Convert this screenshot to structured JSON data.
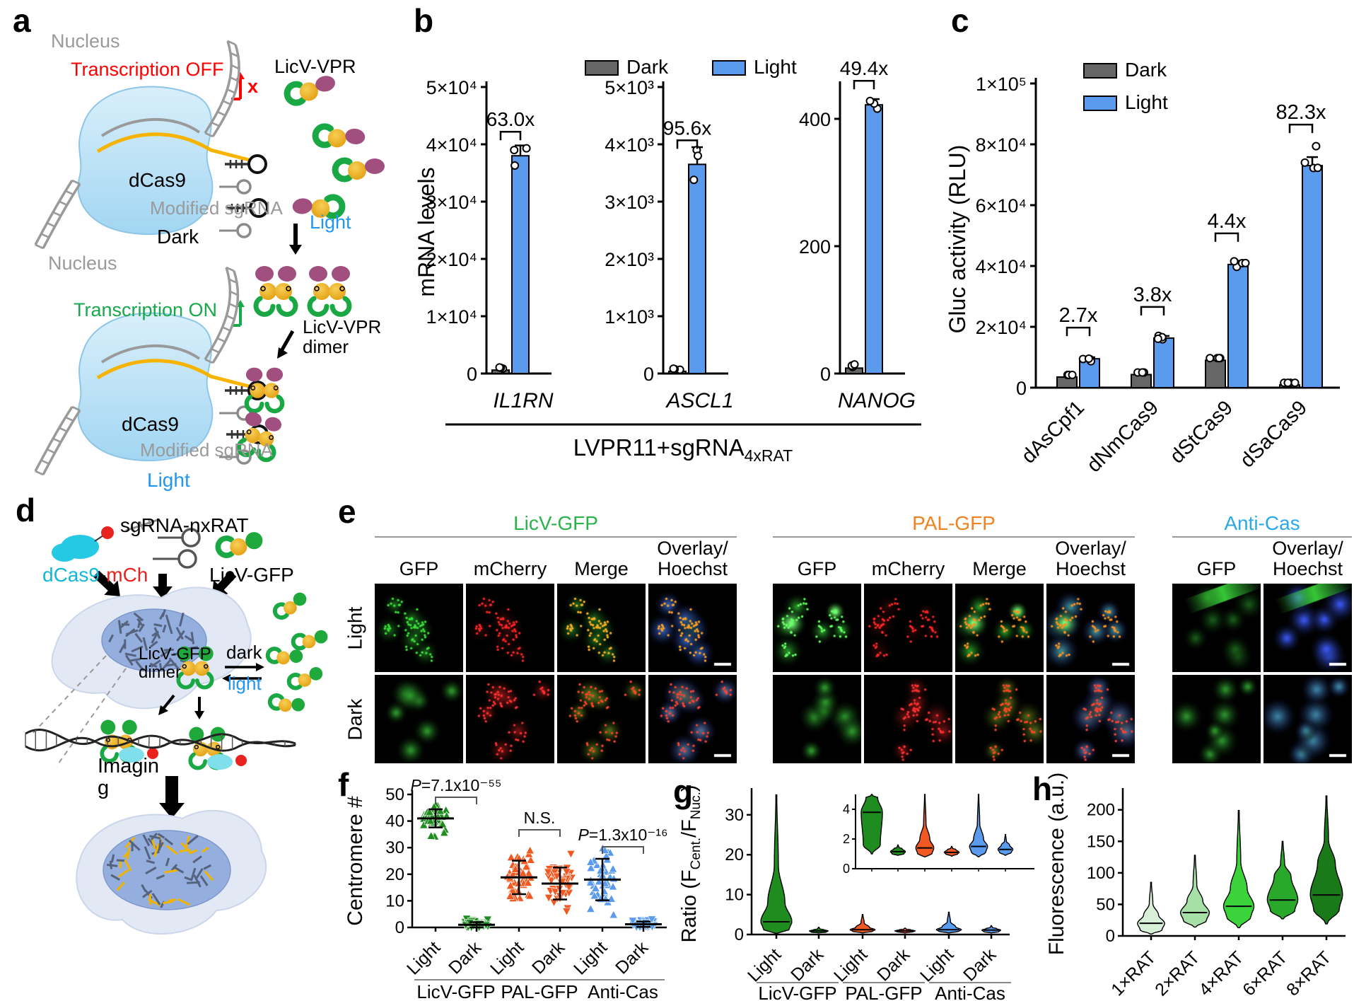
{
  "panels": {
    "a": "a",
    "b": "b",
    "c": "c",
    "d": "d",
    "e": "e",
    "f": "f",
    "g": "g",
    "h": "h"
  },
  "colors": {
    "dark_gray": "#666666",
    "light_blue": "#5b9bee",
    "licv_green": "#1e8c1e",
    "pal_orange": "#f05a22",
    "anticas_blue": "#5b9bee",
    "gold": "#e8a317",
    "vpr_purple": "#a04f7e",
    "dcas9_cyan": "#25c9e3",
    "mch_red": "#e8231f",
    "title_green": "#2bb34b",
    "title_orange": "#f08220",
    "title_blue": "#29a9e8"
  },
  "panel_a": {
    "nucleus_top": "Nucleus",
    "transcription_off": "Transcription OFF",
    "x_mark": "x",
    "licv_vpr": "LicV-VPR",
    "dcas9_top": "dCas9",
    "modified_sgrna_top": "Modified sgRNA",
    "dark": "Dark",
    "light": "Light",
    "nucleus_bottom": "Nucleus",
    "transcription_on": "Transcription ON",
    "dimer": "LicV-VPR\ndimer",
    "dcas9_bottom": "dCas9",
    "modified_sgrna_bottom": "Modified sgRNA",
    "light_bottom": "Light"
  },
  "panel_d": {
    "sgrna": "sgRNA-nxRAT",
    "dcas9": "dCas9",
    "dash": "-",
    "mch": "mCh",
    "licv_gfp": "LicV-GFP",
    "dimer": "LicV-GFP\ndimer",
    "dark": "dark",
    "light": "light",
    "imaging": "Imagin\ng"
  },
  "panel_e": {
    "row_labels": [
      "Light",
      "Dark"
    ],
    "groups": [
      {
        "title": "LicV-GFP",
        "title_color": "#2bb34b",
        "cols": [
          "GFP",
          "mCherry",
          "Merge",
          "Overlay/\nHoechst"
        ],
        "tiles": {
          "Light": [
            "gfp-puncta",
            "mch-puncta",
            "merge-yellow",
            "overlay-orange"
          ],
          "Dark": [
            "gfp-diffuse",
            "mch-cells",
            "merge-olive",
            "overlay-olive-red"
          ]
        }
      },
      {
        "title": "PAL-GFP",
        "title_color": "#f08220",
        "cols": [
          "GFP",
          "mCherry",
          "Merge",
          "Overlay/\nHoechst"
        ],
        "tiles": {
          "Light": [
            "gfp-bright",
            "mch-puncta",
            "merge-bright-orange",
            "overlay-green-orange"
          ],
          "Dark": [
            "gfp-diffuse",
            "mch-cells",
            "merge-olive",
            "overlay-olive-red"
          ]
        }
      },
      {
        "title": "Anti-Cas",
        "title_color": "#29a9e8",
        "cols": [
          "GFP",
          "Overlay/\nHoechst"
        ],
        "tiles": {
          "Light": [
            "gfp-streak",
            "overlay-streak"
          ],
          "Dark": [
            "gfp-cells",
            "overlay-green"
          ]
        }
      }
    ]
  },
  "chart_data": [
    {
      "id": "b",
      "type": "bar",
      "ylabel": "mRNA levels",
      "legend": [
        {
          "label": "Dark",
          "color": "#666666"
        },
        {
          "label": "Light",
          "color": "#5b9bee"
        }
      ],
      "xlabel_prefix": "LVPR11+sgRNA",
      "xlabel_sub": "4xRAT",
      "subplots": [
        {
          "gene": "IL1RN",
          "ylim": [
            0,
            50000
          ],
          "yticks": [
            [
              0,
              "0"
            ],
            [
              10000,
              "1×10⁴"
            ],
            [
              20000,
              "2×10⁴"
            ],
            [
              30000,
              "3×10⁴"
            ],
            [
              40000,
              "4×10⁴"
            ],
            [
              50000,
              "5×10⁴"
            ]
          ],
          "dark": 600,
          "light": 38000,
          "light_err": 1800,
          "fold": "63.0x",
          "points_dark": [
            500,
            620,
            700
          ],
          "points_light": [
            39000,
            36300,
            39300
          ]
        },
        {
          "gene": "ASCL1",
          "ylim": [
            0,
            5000
          ],
          "yticks": [
            [
              0,
              "0"
            ],
            [
              1000,
              "1×10³"
            ],
            [
              2000,
              "2×10³"
            ],
            [
              3000,
              "3×10³"
            ],
            [
              4000,
              "4×10³"
            ],
            [
              5000,
              "5×10³"
            ]
          ],
          "dark": 38,
          "light": 3650,
          "light_err": 300,
          "fold": "95.6x",
          "points_dark": [
            30,
            40,
            48
          ],
          "points_light": [
            3900,
            3380,
            3800
          ]
        },
        {
          "gene": "NANOG",
          "ylim": [
            0,
            450
          ],
          "yticks": [
            [
              0,
              "0"
            ],
            [
              200,
              "200"
            ],
            [
              400,
              "400"
            ]
          ],
          "dark": 8.5,
          "light": 422,
          "light_err": 9,
          "fold": "49.4x",
          "points_dark": [
            7,
            9,
            11
          ],
          "points_light": [
            416,
            424,
            428
          ]
        }
      ]
    },
    {
      "id": "c",
      "type": "bar-grouped",
      "ylabel": "Gluc activity (RLU)",
      "ylim": [
        0,
        100000
      ],
      "yticks": [
        [
          0,
          "0"
        ],
        [
          20000,
          "2×10⁴"
        ],
        [
          40000,
          "4×10⁴"
        ],
        [
          60000,
          "6×10⁴"
        ],
        [
          80000,
          "8×10⁴"
        ],
        [
          100000,
          "1×10⁵"
        ]
      ],
      "categories": [
        "dAsCpf1",
        "dNmCas9",
        "dStCas9",
        "dSaCas9"
      ],
      "series": [
        {
          "name": "Dark",
          "color": "#666666",
          "values": [
            3500,
            4300,
            9000,
            900
          ]
        },
        {
          "name": "Light",
          "color": "#5b9bee",
          "values": [
            9500,
            16300,
            40500,
            73000
          ]
        }
      ],
      "light_err": [
        500,
        700,
        1200,
        2800
      ],
      "folds": [
        "2.7x",
        "3.8x",
        "4.4x",
        "82.3x"
      ]
    },
    {
      "id": "f",
      "type": "scatter",
      "ylabel": "Centromere #",
      "ylim": [
        0,
        50
      ],
      "yticks": [
        0,
        10,
        20,
        30,
        40,
        50
      ],
      "groups": [
        {
          "label": "Light",
          "group": "LicV-GFP",
          "color": "#1e8c1e",
          "mean": 41,
          "sd": 3.4,
          "min": 33,
          "max": 46,
          "n": 46,
          "marker": "up"
        },
        {
          "label": "Dark",
          "group": "LicV-GFP",
          "color": "#1e8c1e",
          "mean": 1.0,
          "sd": 1.0,
          "min": 0,
          "max": 3.5,
          "n": 40,
          "marker": "down"
        },
        {
          "label": "Light",
          "group": "PAL-GFP",
          "color": "#f05a22",
          "mean": 18.8,
          "sd": 6.3,
          "min": 7,
          "max": 32,
          "n": 46,
          "marker": "up"
        },
        {
          "label": "Dark",
          "group": "PAL-GFP",
          "color": "#f05a22",
          "mean": 16.5,
          "sd": 6.0,
          "min": 6,
          "max": 33,
          "n": 46,
          "marker": "down"
        },
        {
          "label": "Light",
          "group": "Anti-Cas",
          "color": "#5b9bee",
          "mean": 18,
          "sd": 7.8,
          "min": 3,
          "max": 31,
          "n": 46,
          "marker": "up"
        },
        {
          "label": "Dark",
          "group": "Anti-Cas",
          "color": "#5b9bee",
          "mean": 1.2,
          "sd": 1.0,
          "min": 0,
          "max": 4,
          "n": 40,
          "marker": "down"
        }
      ],
      "group_labels": [
        "LicV-GFP",
        "PAL-GFP",
        "Anti-Cas"
      ],
      "annotations": [
        {
          "pair": [
            0,
            1
          ],
          "text": "P=7.1x10⁻⁵⁵"
        },
        {
          "pair": [
            2,
            3
          ],
          "text": "N.S."
        },
        {
          "pair": [
            4,
            5
          ],
          "text": "P=1.3x10⁻¹⁶"
        }
      ]
    },
    {
      "id": "g",
      "type": "violin",
      "ylabel_parts": {
        "pre": "Ratio (F",
        "sub1": "Cent.",
        "mid": "/F",
        "sub2": "Nuc.",
        "post": ")"
      },
      "ylim": [
        0,
        36
      ],
      "yticks": [
        0,
        10,
        20,
        30
      ],
      "violins": [
        {
          "label": "Light",
          "group": "LicV-GFP",
          "color": "#1e8c1e",
          "min": 0.3,
          "body_lo": 1.0,
          "median": 3.2,
          "body_hi": 8,
          "max": 35,
          "w": 1.0
        },
        {
          "label": "Dark",
          "group": "LicV-GFP",
          "color": "#1e8c1e",
          "min": 0.4,
          "body_lo": 0.6,
          "median": 0.9,
          "body_hi": 1.2,
          "max": 1.8,
          "w": 0.6
        },
        {
          "label": "Light",
          "group": "PAL-GFP",
          "color": "#f05a22",
          "min": 0.4,
          "body_lo": 0.8,
          "median": 1.2,
          "body_hi": 1.8,
          "max": 5.0,
          "w": 0.8
        },
        {
          "label": "Dark",
          "group": "PAL-GFP",
          "color": "#f05a22",
          "min": 0.4,
          "body_lo": 0.7,
          "median": 0.9,
          "body_hi": 1.2,
          "max": 1.6,
          "w": 0.65
        },
        {
          "label": "Light",
          "group": "Anti-Cas",
          "color": "#5b9bee",
          "min": 0.4,
          "body_lo": 0.8,
          "median": 1.2,
          "body_hi": 1.9,
          "max": 5.6,
          "w": 0.8
        },
        {
          "label": "Dark",
          "group": "Anti-Cas",
          "color": "#5b9bee",
          "min": 0.4,
          "body_lo": 0.7,
          "median": 1.1,
          "body_hi": 1.5,
          "max": 2.2,
          "w": 0.6
        }
      ],
      "group_labels": [
        "LicV-GFP",
        "PAL-GFP",
        "Anti-Cas"
      ],
      "inset": {
        "ylim": [
          0,
          5
        ],
        "yticks": [
          0,
          2,
          4
        ],
        "violins": [
          {
            "color": "#1e8c1e",
            "min": 1.0,
            "body_lo": 1.6,
            "median": 3.8,
            "body_hi": 4.8,
            "max": 5.0,
            "w": 1.0
          },
          {
            "color": "#1e8c1e",
            "min": 0.9,
            "body_lo": 1.0,
            "median": 1.15,
            "body_hi": 1.35,
            "max": 1.6,
            "w": 0.7
          },
          {
            "color": "#f05a22",
            "min": 0.8,
            "body_lo": 1.0,
            "median": 1.4,
            "body_hi": 2.0,
            "max": 5.0,
            "w": 0.85
          },
          {
            "color": "#f05a22",
            "min": 0.85,
            "body_lo": 1.0,
            "median": 1.1,
            "body_hi": 1.3,
            "max": 1.5,
            "w": 0.7
          },
          {
            "color": "#5b9bee",
            "min": 0.8,
            "body_lo": 1.1,
            "median": 1.5,
            "body_hi": 2.0,
            "max": 5.0,
            "w": 0.85
          },
          {
            "color": "#5b9bee",
            "min": 0.9,
            "body_lo": 1.1,
            "median": 1.3,
            "body_hi": 1.6,
            "max": 2.3,
            "w": 0.7
          }
        ]
      }
    },
    {
      "id": "h",
      "type": "violin",
      "ylabel": "Fluorescence (a.u.)",
      "ylim": [
        0,
        230
      ],
      "yticks": [
        0,
        50,
        100,
        150,
        200
      ],
      "violins": [
        {
          "label": "1×RAT",
          "color": "#d8f0d8",
          "min": 3,
          "body_lo": 9,
          "median": 20,
          "body_hi": 33,
          "max": 85,
          "w": 0.8
        },
        {
          "label": "2×RAT",
          "color": "#a6e0a6",
          "min": 14,
          "body_lo": 24,
          "median": 37,
          "body_hi": 55,
          "max": 128,
          "w": 0.85
        },
        {
          "label": "4×RAT",
          "color": "#3ad43a",
          "min": 13,
          "body_lo": 30,
          "median": 47,
          "body_hi": 75,
          "max": 199,
          "w": 0.9
        },
        {
          "label": "6×RAT",
          "color": "#2aa82a",
          "min": 27,
          "body_lo": 40,
          "median": 57,
          "body_hi": 95,
          "max": 150,
          "w": 0.9
        },
        {
          "label": "8×RAT",
          "color": "#1a7a1a",
          "min": 19,
          "body_lo": 42,
          "median": 65,
          "body_hi": 115,
          "max": 222,
          "w": 0.95
        }
      ]
    }
  ]
}
